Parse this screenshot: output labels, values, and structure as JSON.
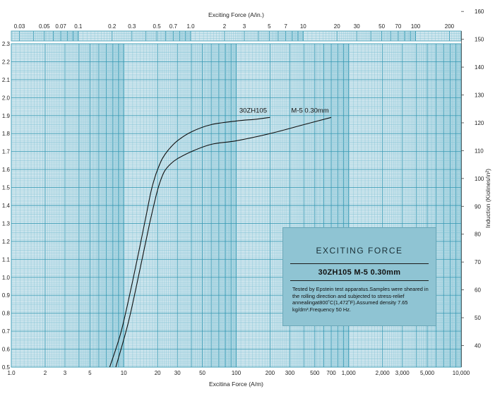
{
  "chart_data": {
    "type": "line",
    "x_bottom_label": "Excitina Force (A/m)",
    "x_top_label": "Exciting Force (A/in.)",
    "y_left_label": "",
    "y_right_label": "Induction (Kiolines/in²)",
    "x_bottom_ticks": [
      "1.0",
      "2",
      "3",
      "5",
      "10",
      "20",
      "30",
      "50",
      "100",
      "200",
      "300",
      "500",
      "700",
      "1,000",
      "2,000",
      "3,000",
      "5,000",
      "10,000"
    ],
    "x_top_ticks": [
      "0.03",
      "0.05",
      "0.07",
      "0.1",
      "0.2",
      "0.3",
      "0.5",
      "0.7",
      "1.0",
      "2",
      "3",
      "5",
      "7",
      "10",
      "20",
      "30",
      "50",
      "70",
      "100",
      "200"
    ],
    "y_left_ticks": [
      "0.5",
      "0.6",
      "0.7",
      "0.8",
      "0.9",
      "1.0",
      "1.1",
      "1.2",
      "1.3",
      "1.4",
      "1.5",
      "1.6",
      "1.7",
      "1.8",
      "1.9",
      "2.0",
      "2.1",
      "2.2",
      "2.3"
    ],
    "y_right_ticks": [
      "40",
      "50",
      "60",
      "70",
      "80",
      "90",
      "100",
      "110",
      "120",
      "130",
      "140",
      "150",
      "160"
    ],
    "x_scale": "log",
    "xlim": [
      1,
      10000
    ],
    "ylim": [
      0.5,
      2.3
    ],
    "grid": true,
    "series": [
      {
        "name": "30ZH105",
        "x": [
          7.5,
          9.5,
          12,
          14,
          16,
          17.5,
          19,
          20,
          22,
          25,
          30,
          40,
          60,
          100,
          150,
          200
        ],
        "y": [
          0.5,
          0.7,
          0.98,
          1.18,
          1.36,
          1.48,
          1.56,
          1.6,
          1.66,
          1.71,
          1.76,
          1.81,
          1.85,
          1.87,
          1.88,
          1.89
        ]
      },
      {
        "name": "M-5 0.30mm",
        "x": [
          8.5,
          11,
          14,
          17,
          19.5,
          21,
          23,
          26,
          30,
          40,
          60,
          100,
          200,
          400,
          700
        ],
        "y": [
          0.5,
          0.75,
          1.05,
          1.3,
          1.46,
          1.53,
          1.59,
          1.63,
          1.66,
          1.7,
          1.74,
          1.76,
          1.8,
          1.85,
          1.89
        ]
      }
    ]
  },
  "info_box": {
    "heading": "EXCITING FORCE",
    "grade": "30ZH105   M-5  0.30mm",
    "description": "Tested by Epstein test apparatus.Samples were sheared in the rolling direction and subjected to stress-relief annealingat800˚C(1,472˚F).Assumed density 7.65 kg/dm³.Frequency 50 Hz."
  },
  "colors": {
    "plot_bg": "#cfe6ee",
    "grid_minor": "#7cc0d2",
    "grid_major": "#3e9db6",
    "curve": "#111111",
    "box_bg": "#8fc4d3"
  }
}
